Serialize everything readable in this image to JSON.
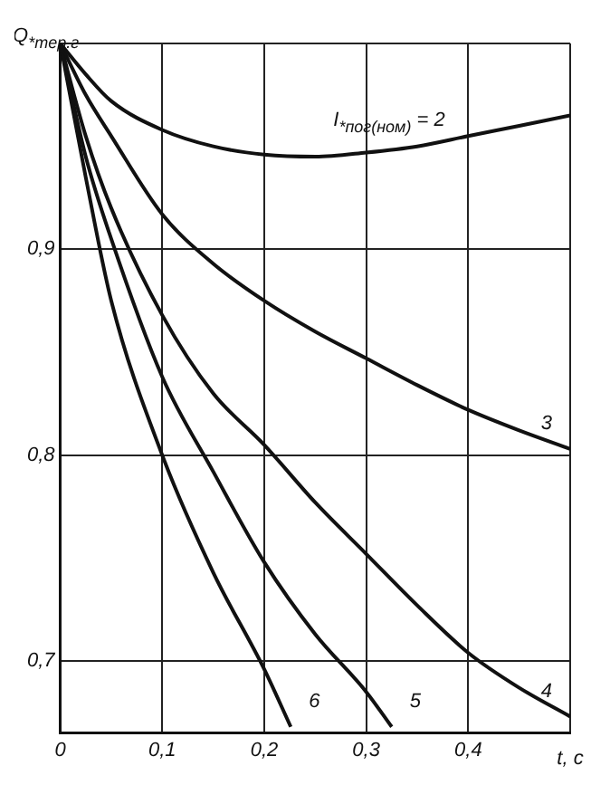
{
  "chart_data": {
    "type": "line",
    "ylabel": "Q$_{*тер.г}$",
    "xlabel": "t, c",
    "xlim": [
      0,
      0.5
    ],
    "xticks": [
      0,
      {
        "value": 0.1,
        "label": "0,1"
      },
      {
        "value": 0.2,
        "label": "0,2"
      },
      {
        "value": 0.3,
        "label": "0,3"
      },
      {
        "value": 0.4,
        "label": "0,4"
      },
      {
        "value": 0.5,
        "label": null
      }
    ],
    "ylim": [
      0.665,
      1.0
    ],
    "yticks": [
      {
        "value": 0.7,
        "label": "0,7"
      },
      {
        "value": 0.8,
        "label": "0,8"
      },
      {
        "value": 0.9,
        "label": "0,9"
      },
      {
        "value": 1.0,
        "label": null
      }
    ],
    "grid": true,
    "marker": "none",
    "line_style": "solid",
    "series": [
      {
        "name": "I$_{*пог(ном)}$ = 2",
        "color": "#111111",
        "x": [
          0,
          0.025,
          0.05,
          0.1,
          0.15,
          0.2,
          0.25,
          0.3,
          0.35,
          0.4,
          0.45,
          0.5
        ],
        "values": [
          1,
          0.985,
          0.972,
          0.958,
          0.95,
          0.946,
          0.945,
          0.947,
          0.95,
          0.955,
          0.96,
          0.965
        ]
      },
      {
        "name": "3",
        "color": "#111111",
        "x": [
          0,
          0.025,
          0.05,
          0.1,
          0.15,
          0.2,
          0.25,
          0.3,
          0.35,
          0.4,
          0.45,
          0.5
        ],
        "values": [
          1,
          0.975,
          0.955,
          0.917,
          0.893,
          0.875,
          0.86,
          0.847,
          0.834,
          0.822,
          0.812,
          0.803
        ]
      },
      {
        "name": "4",
        "color": "#111111",
        "x": [
          0,
          0.025,
          0.05,
          0.1,
          0.15,
          0.2,
          0.25,
          0.3,
          0.35,
          0.4,
          0.45,
          0.5
        ],
        "values": [
          1,
          0.955,
          0.92,
          0.868,
          0.83,
          0.805,
          0.777,
          0.752,
          0.727,
          0.704,
          0.687,
          0.673
        ]
      },
      {
        "name": "5",
        "color": "#111111",
        "x": [
          0,
          0.025,
          0.05,
          0.1,
          0.15,
          0.2,
          0.25,
          0.3,
          0.325
        ],
        "values": [
          1,
          0.945,
          0.905,
          0.838,
          0.792,
          0.748,
          0.713,
          0.685,
          0.668
        ]
      },
      {
        "name": "6",
        "color": "#111111",
        "x": [
          0,
          0.025,
          0.05,
          0.1,
          0.15,
          0.2,
          0.226
        ],
        "values": [
          1,
          0.935,
          0.875,
          0.8,
          0.743,
          0.696,
          0.668
        ]
      }
    ]
  }
}
